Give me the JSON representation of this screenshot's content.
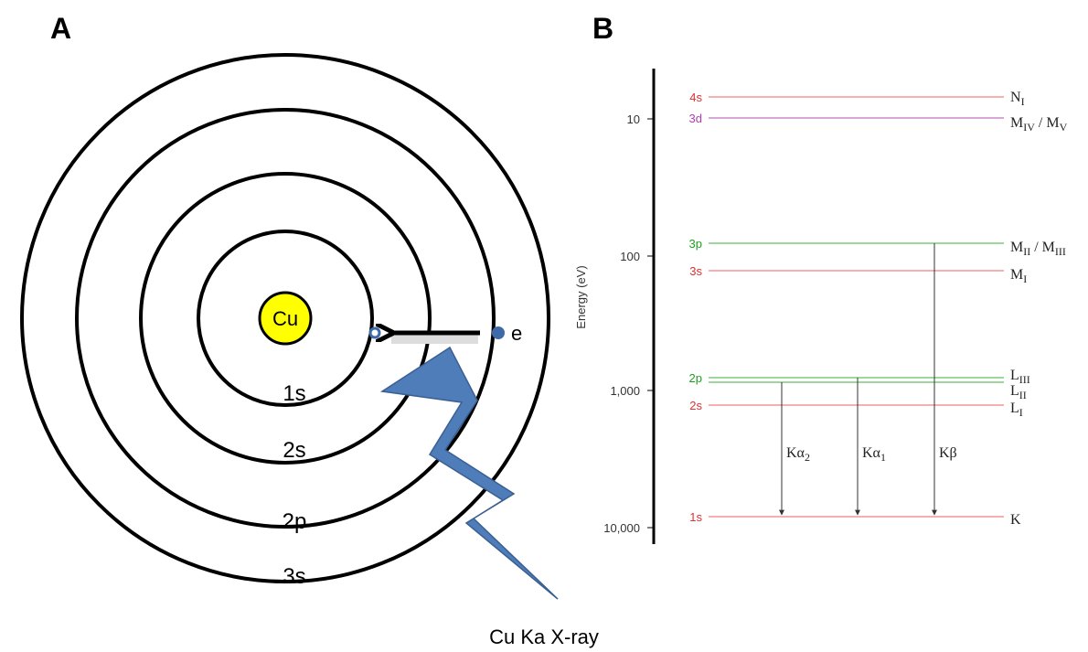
{
  "panel_a": {
    "label": "A",
    "nucleus": "Cu",
    "electron": "e",
    "shells": [
      "1s",
      "2s",
      "2p",
      "3s"
    ],
    "caption": "Cu Ka  X-ray"
  },
  "panel_b": {
    "label": "B",
    "axis_title": "Energy (eV)",
    "ticks": [
      "10",
      "100",
      "1,000",
      "10,000"
    ],
    "levels": [
      {
        "orbital": "4s",
        "color": "#e03030",
        "line": "#f08080",
        "name": [
          {
            "t": "N"
          },
          {
            "s": "I"
          }
        ]
      },
      {
        "orbital": "3d",
        "color": "#b040b0",
        "line": "#c070c0",
        "name": [
          {
            "t": "M"
          },
          {
            "s": "IV"
          },
          {
            "t": " / M"
          },
          {
            "s": "V"
          }
        ]
      },
      {
        "orbital": "3p",
        "color": "#20a020",
        "line": "#60c060",
        "name": [
          {
            "t": "M"
          },
          {
            "s": "II"
          },
          {
            "t": " / M"
          },
          {
            "s": "III"
          }
        ]
      },
      {
        "orbital": "3s",
        "color": "#e03030",
        "line": "#f08080",
        "name": [
          {
            "t": "M"
          },
          {
            "s": "I"
          }
        ]
      },
      {
        "orbital": "2p",
        "color": "#20a020",
        "line": "#60c060",
        "name": [
          {
            "t": "L"
          },
          {
            "s": "III"
          }
        ]
      },
      {
        "color": "#20a020",
        "line": "#60c060",
        "name": [
          {
            "t": "L"
          },
          {
            "s": "II"
          }
        ]
      },
      {
        "orbital": "2s",
        "color": "#e03030",
        "line": "#f08080",
        "name": [
          {
            "t": "L"
          },
          {
            "s": "I"
          }
        ]
      },
      {
        "orbital": "1s",
        "color": "#e03030",
        "line": "#f08080",
        "name": [
          {
            "t": "K"
          }
        ]
      }
    ],
    "transitions": [
      [
        {
          "t": "Kα"
        },
        {
          "s": "2"
        }
      ],
      [
        {
          "t": "Kα"
        },
        {
          "s": "1"
        }
      ],
      [
        {
          "t": "Kβ"
        }
      ]
    ]
  }
}
